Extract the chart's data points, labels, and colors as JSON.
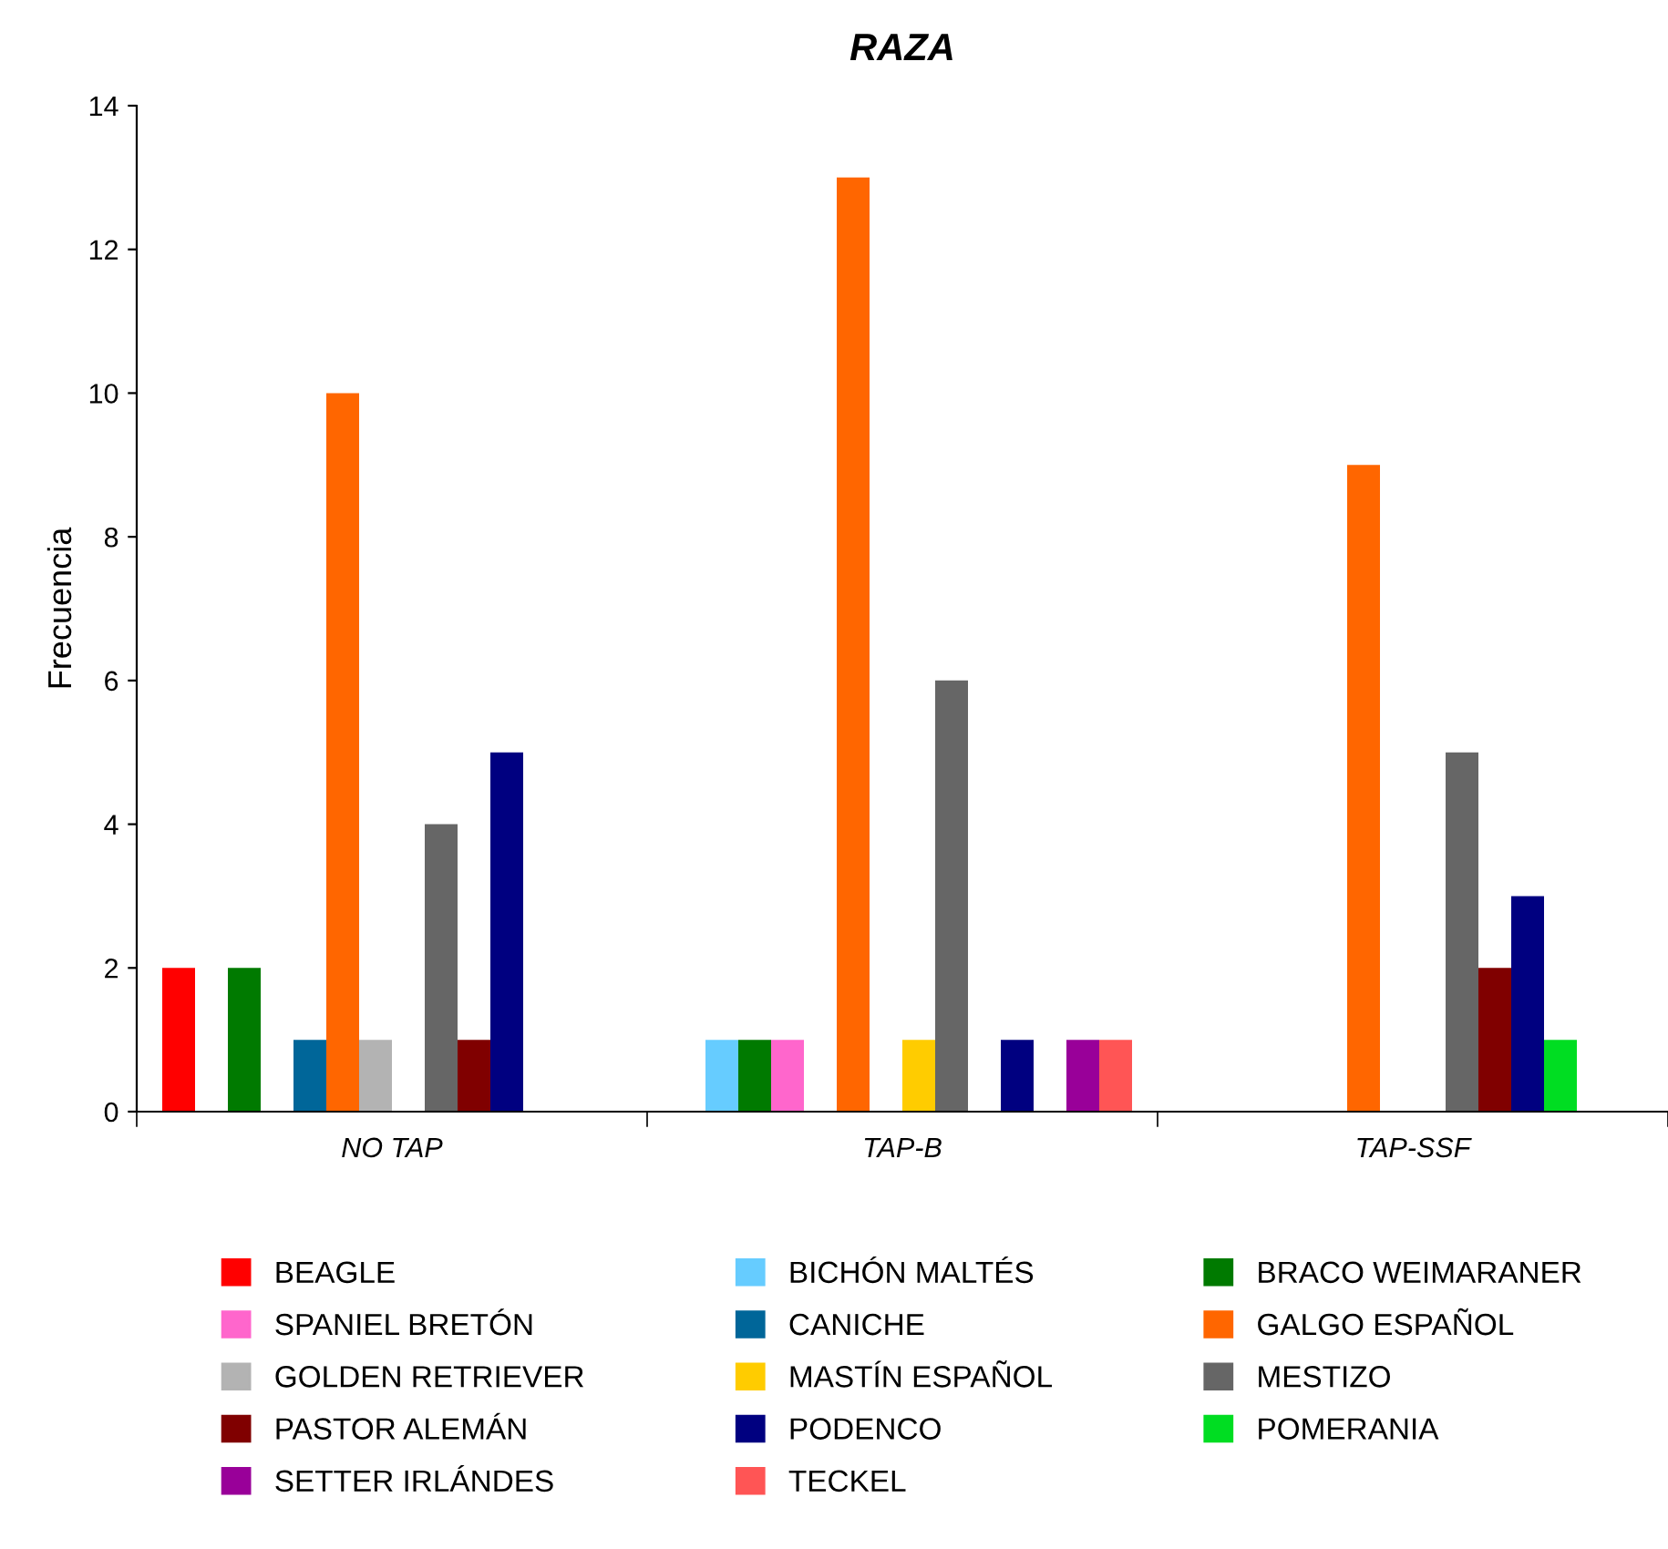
{
  "chart_data": {
    "type": "bar",
    "title": "RAZA",
    "ylabel": "Frecuencia",
    "categories": [
      "NO TAP",
      "TAP-B",
      "TAP-SSF"
    ],
    "series": [
      {
        "name": "BEAGLE",
        "color": "#ff0000",
        "values": [
          2,
          0,
          0
        ]
      },
      {
        "name": "BICHÓN MALTÉS",
        "color": "#66ccff",
        "values": [
          0,
          1,
          0
        ]
      },
      {
        "name": "BRACO WEIMARANER",
        "color": "#007a00",
        "values": [
          2,
          1,
          0
        ]
      },
      {
        "name": "SPANIEL BRETÓN",
        "color": "#ff66cc",
        "values": [
          0,
          1,
          0
        ]
      },
      {
        "name": "CANICHE",
        "color": "#006699",
        "values": [
          1,
          0,
          0
        ]
      },
      {
        "name": "GALGO ESPAÑOL",
        "color": "#ff6600",
        "values": [
          10,
          13,
          9
        ]
      },
      {
        "name": "GOLDEN RETRIEVER",
        "color": "#b3b3b3",
        "values": [
          1,
          0,
          0
        ]
      },
      {
        "name": "MASTÍN ESPAÑOL",
        "color": "#ffcc00",
        "values": [
          0,
          1,
          0
        ]
      },
      {
        "name": "MESTIZO",
        "color": "#666666",
        "values": [
          4,
          6,
          5
        ]
      },
      {
        "name": "PASTOR ALEMÁN",
        "color": "#800000",
        "values": [
          1,
          0,
          2
        ]
      },
      {
        "name": "PODENCO",
        "color": "#000080",
        "values": [
          5,
          1,
          3
        ]
      },
      {
        "name": "POMERANIA",
        "color": "#00dd22",
        "values": [
          0,
          0,
          1
        ]
      },
      {
        "name": "SETTER IRLÁNDES",
        "color": "#990099",
        "values": [
          0,
          1,
          0
        ]
      },
      {
        "name": "TECKEL",
        "color": "#ff5555",
        "values": [
          0,
          1,
          0
        ]
      }
    ],
    "ylim": [
      0,
      14
    ],
    "yticks": [
      0,
      2,
      4,
      6,
      8,
      10,
      12,
      14
    ],
    "grid": false,
    "legend": "bottom"
  }
}
